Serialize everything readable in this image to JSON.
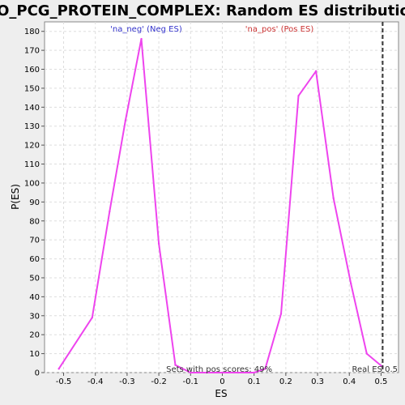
{
  "chart_data": {
    "type": "line",
    "title": "GO_PCG_PROTEIN_COMPLEX: Random ES distribution",
    "xlabel": "ES",
    "ylabel": "P(ES)",
    "xlim": [
      -0.56,
      0.555
    ],
    "ylim": [
      0,
      185
    ],
    "x_ticks": [
      -0.5,
      -0.4,
      -0.3,
      -0.2,
      -0.1,
      0.0,
      0.1,
      0.2,
      0.3,
      0.4,
      0.5
    ],
    "x_tick_labels": [
      "-0.5",
      "-0.4",
      "-0.3",
      "-0.2",
      "-0.1",
      "0",
      "0.1",
      "0.2",
      "0.3",
      "0.4",
      "0.5"
    ],
    "y_ticks": [
      0,
      10,
      20,
      30,
      40,
      50,
      60,
      70,
      80,
      90,
      100,
      110,
      120,
      130,
      140,
      150,
      160,
      170,
      180
    ],
    "grid": true,
    "series": [
      {
        "color": "#ee44ee",
        "x": [
          -0.515,
          -0.41,
          -0.355,
          -0.305,
          -0.255,
          -0.2,
          -0.148,
          -0.1,
          -0.05,
          0.0,
          0.05,
          0.1,
          0.135,
          0.185,
          0.24,
          0.295,
          0.35,
          0.405,
          0.455,
          0.505
        ],
        "y": [
          2,
          29,
          85,
          133,
          176,
          68,
          4,
          0,
          0,
          0,
          0,
          0,
          2,
          31,
          146,
          159,
          92,
          47,
          10,
          3
        ]
      }
    ],
    "real_es": 0.505,
    "annotations": {
      "neg_label": "'na_neg' (Neg ES)",
      "pos_label": "'na_pos' (Pos ES)",
      "sets_pos": "Sets with pos scores: 49%",
      "real_es": "Real ES 0.5"
    },
    "colors": {
      "neg": "#3333cc",
      "pos": "#cc3333",
      "line": "#ee44ee"
    }
  }
}
